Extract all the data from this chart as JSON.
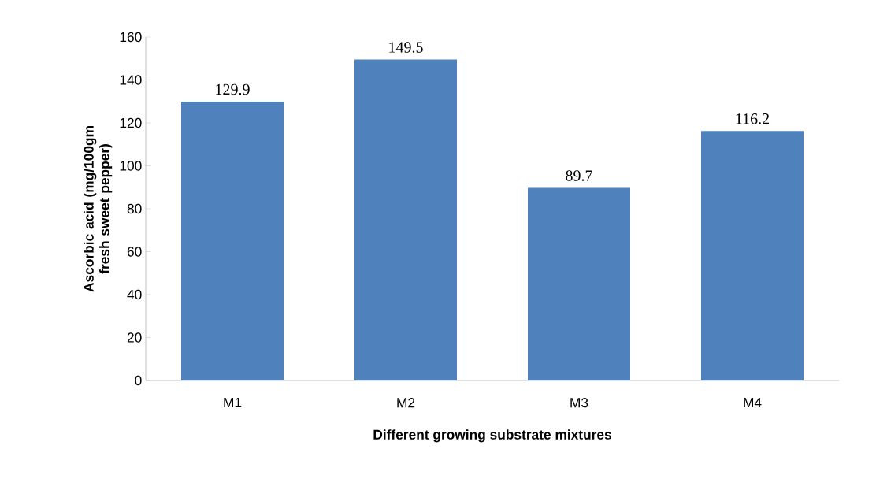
{
  "chart_data": {
    "type": "bar",
    "xlabel": "Different growing substrate mixtures",
    "ylabel": "Ascorbic acid (mg/100gm fresh sweet pepper)",
    "categories": [
      "M1",
      "M2",
      "M3",
      "M4"
    ],
    "values": [
      129.9,
      149.5,
      89.7,
      116.2
    ],
    "color": "#4f81bd",
    "ylim": [
      0,
      160
    ],
    "yticks": [
      0,
      20,
      40,
      60,
      80,
      100,
      120,
      140,
      160
    ],
    "data_labels": true,
    "grid": false
  }
}
